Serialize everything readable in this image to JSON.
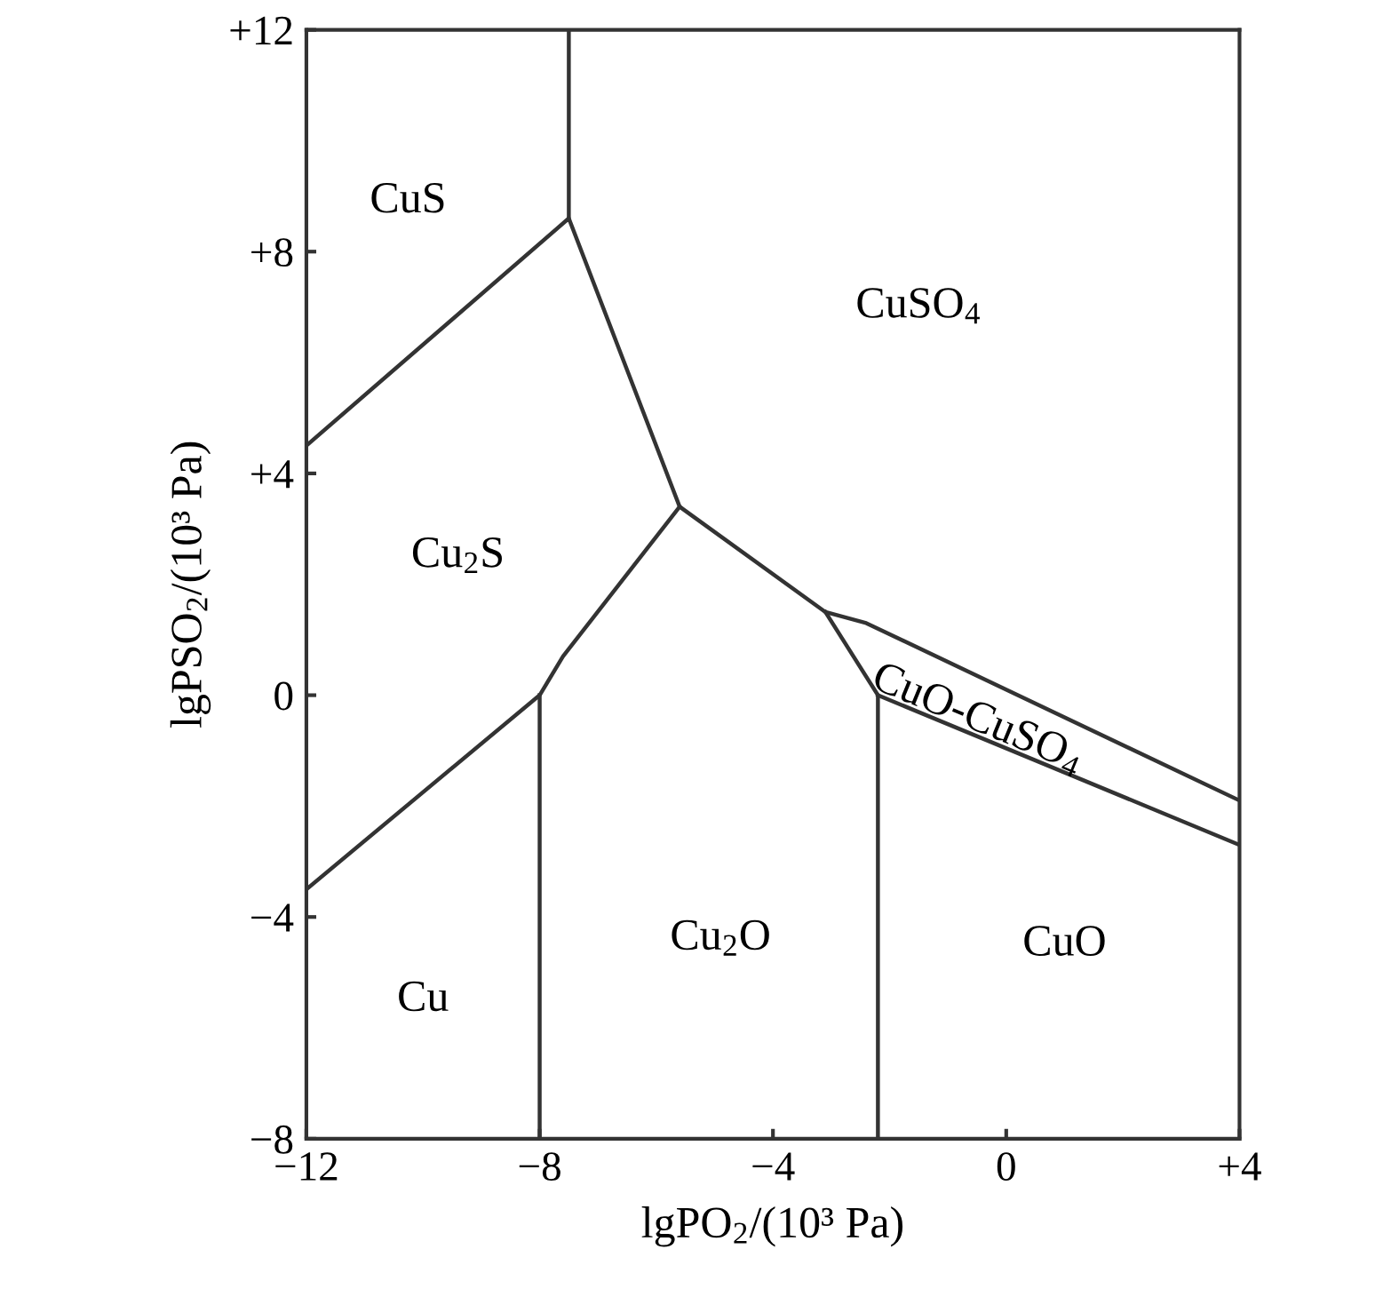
{
  "chart_data": {
    "type": "line",
    "xlabel": "lgPO$_{2}$/(10³ Pa)",
    "ylabel": "lgPSO$_{2}$/(10³ Pa)",
    "xlim": [
      -12,
      4
    ],
    "ylim": [
      -8,
      12
    ],
    "xticks": [
      {
        "value": -12,
        "label": "−12"
      },
      {
        "value": -8,
        "label": "−8"
      },
      {
        "value": -4,
        "label": "−4"
      },
      0,
      {
        "value": 4,
        "label": "+4"
      }
    ],
    "yticks": [
      {
        "value": -8,
        "label": "−8"
      },
      {
        "value": -4,
        "label": "−4"
      },
      0,
      {
        "value": 4,
        "label": "+4"
      },
      {
        "value": 8,
        "label": "+8"
      },
      {
        "value": 12,
        "label": "+12"
      }
    ],
    "grid": false,
    "legend": false,
    "marker": "none",
    "line_style": "solid",
    "series": [
      {
        "color": "#333333",
        "x": [
          -7.5,
          -7.5
        ],
        "values": [
          12,
          8.6
        ]
      },
      {
        "color": "#333333",
        "x": [
          -12,
          -7.5,
          -5.6,
          -3.1,
          -2.4,
          4
        ],
        "values": [
          4.5,
          8.6,
          3.4,
          1.5,
          1.3,
          -1.9
        ]
      },
      {
        "color": "#333333",
        "x": [
          -12,
          -8,
          -7.6,
          -5.6
        ],
        "values": [
          -3.5,
          0,
          0.7,
          3.4
        ]
      },
      {
        "color": "#333333",
        "x": [
          -8,
          -8
        ],
        "values": [
          0,
          -8
        ]
      },
      {
        "color": "#333333",
        "x": [
          -3.1,
          -2.2,
          -2.2
        ],
        "values": [
          1.5,
          0,
          -8
        ]
      },
      {
        "color": "#333333",
        "x": [
          -2.2,
          4
        ],
        "values": [
          0,
          -2.7
        ]
      }
    ],
    "annotations": [
      "CuS",
      "CuSO$_{4}$",
      "Cu$_{2}$S",
      "Cu",
      "Cu$_{2}$O",
      "CuO",
      "CuO-CuSO$_{4}$"
    ]
  }
}
